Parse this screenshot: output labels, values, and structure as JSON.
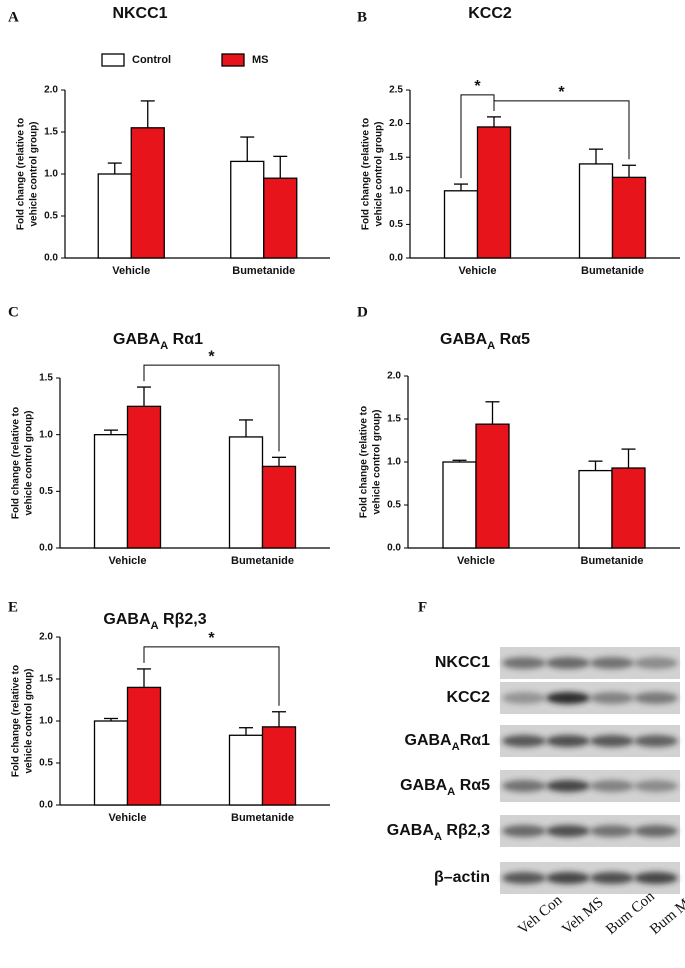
{
  "chart_data": [
    {
      "type": "bar",
      "panel": "A",
      "title": [
        "NKCC1"
      ],
      "ylabel": [
        "Fold change (relative to",
        "vehicle control group)"
      ],
      "categories": [
        "Vehicle",
        "Bumetanide"
      ],
      "legend": true,
      "series": [
        {
          "name": "Control",
          "color": "#ffffff",
          "values": [
            1.0,
            1.15
          ],
          "errors": [
            0.13,
            0.29
          ]
        },
        {
          "name": "MS",
          "color": "#e8141b",
          "values": [
            1.55,
            0.95
          ],
          "errors": [
            0.32,
            0.26
          ]
        }
      ],
      "ylim": [
        0,
        2
      ],
      "yticks": [
        {
          "value": 0,
          "label": "0.0"
        },
        {
          "value": 0.5,
          "label": "0.5"
        },
        {
          "value": 1,
          "label": "1.0"
        },
        {
          "value": 1.5,
          "label": "1.5"
        },
        {
          "value": 2,
          "label": "2.0"
        }
      ],
      "annotations": []
    },
    {
      "type": "bar",
      "panel": "B",
      "title": [
        "KCC2"
      ],
      "ylabel": [
        "Fold change (relative to",
        "vehicle control group)"
      ],
      "categories": [
        "Vehicle",
        "Bumetanide"
      ],
      "legend": false,
      "series": [
        {
          "color": "#ffffff",
          "values": [
            1.0,
            1.4
          ],
          "errors": [
            0.1,
            0.22
          ]
        },
        {
          "color": "#e8141b",
          "values": [
            1.95,
            1.2
          ],
          "errors": [
            0.15,
            0.18
          ]
        }
      ],
      "ylim": [
        0,
        2.5
      ],
      "yticks": [
        {
          "value": 0,
          "label": "0.0"
        },
        {
          "value": 0.5,
          "label": "0.5"
        },
        {
          "value": 1,
          "label": "1.0"
        },
        {
          "value": 1.5,
          "label": "1.5"
        },
        {
          "value": 2,
          "label": "2.0"
        },
        {
          "value": 2.5,
          "label": "2.5"
        }
      ],
      "annotations": [
        {
          "text": "*",
          "between": [
            [
              0,
              0
            ],
            [
              1,
              0
            ]
          ]
        },
        {
          "text": "*",
          "between": [
            [
              1,
              0
            ],
            [
              1,
              1
            ]
          ]
        }
      ]
    },
    {
      "type": "bar",
      "panel": "C",
      "title": [
        "GABA",
        "A",
        " Rα1"
      ],
      "ylabel": [
        "Fold change (relative to",
        "vehicle control group)"
      ],
      "categories": [
        "Vehicle",
        "Bumetanide"
      ],
      "legend": false,
      "series": [
        {
          "color": "#ffffff",
          "values": [
            1.0,
            0.98
          ],
          "errors": [
            0.04,
            0.15
          ]
        },
        {
          "color": "#e8141b",
          "values": [
            1.25,
            0.72
          ],
          "errors": [
            0.17,
            0.08
          ]
        }
      ],
      "ylim": [
        0,
        1.5
      ],
      "yticks": [
        {
          "value": 0,
          "label": "0.0"
        },
        {
          "value": 0.5,
          "label": "0.5"
        },
        {
          "value": 1,
          "label": "1.0"
        },
        {
          "value": 1.5,
          "label": "1.5"
        }
      ],
      "annotations": [
        {
          "text": "*",
          "between": [
            [
              1,
              0
            ],
            [
              1,
              1
            ]
          ]
        }
      ]
    },
    {
      "type": "bar",
      "panel": "D",
      "title": [
        "GABA",
        "A",
        " Rα5"
      ],
      "ylabel": [
        "Fold change (relative to",
        "vehicle control group)"
      ],
      "categories": [
        "Vehicle",
        "Bumetanide"
      ],
      "legend": false,
      "series": [
        {
          "color": "#ffffff",
          "values": [
            1.0,
            0.9
          ],
          "errors": [
            0.02,
            0.11
          ]
        },
        {
          "color": "#e8141b",
          "values": [
            1.44,
            0.93
          ],
          "errors": [
            0.26,
            0.22
          ]
        }
      ],
      "ylim": [
        0,
        2
      ],
      "yticks": [
        {
          "value": 0,
          "label": "0.0"
        },
        {
          "value": 0.5,
          "label": "0.5"
        },
        {
          "value": 1,
          "label": "1.0"
        },
        {
          "value": 1.5,
          "label": "1.5"
        },
        {
          "value": 2,
          "label": "2.0"
        }
      ],
      "annotations": []
    },
    {
      "type": "bar",
      "panel": "E",
      "title": [
        "GABA",
        "A",
        " Rβ2,3"
      ],
      "ylabel": [
        "Fold change (relative to",
        "vehicle control group)"
      ],
      "categories": [
        "Vehicle",
        "Bumetanide"
      ],
      "legend": false,
      "series": [
        {
          "color": "#ffffff",
          "values": [
            1.0,
            0.83
          ],
          "errors": [
            0.03,
            0.09
          ]
        },
        {
          "color": "#e8141b",
          "values": [
            1.4,
            0.93
          ],
          "errors": [
            0.22,
            0.18
          ]
        }
      ],
      "ylim": [
        0,
        2
      ],
      "yticks": [
        {
          "value": 0,
          "label": "0.0"
        },
        {
          "value": 0.5,
          "label": "0.5"
        },
        {
          "value": 1,
          "label": "1.0"
        },
        {
          "value": 1.5,
          "label": "1.5"
        },
        {
          "value": 2,
          "label": "2.0"
        }
      ],
      "annotations": [
        {
          "text": "*",
          "between": [
            [
              1,
              0
            ],
            [
              1,
              1
            ]
          ]
        }
      ]
    }
  ],
  "blot": {
    "panel": "F",
    "rows": [
      [
        "NKCC1"
      ],
      [
        "KCC2"
      ],
      [
        "GABA",
        "A",
        "Rα1"
      ],
      [
        "GABA",
        "A",
        " Rα5"
      ],
      [
        "GABA",
        "A",
        " Rβ2,3"
      ],
      [
        "β–actin"
      ]
    ],
    "lanes": [
      "Veh Con",
      "Veh MS",
      "Bum Con",
      "Bum MS"
    ]
  }
}
